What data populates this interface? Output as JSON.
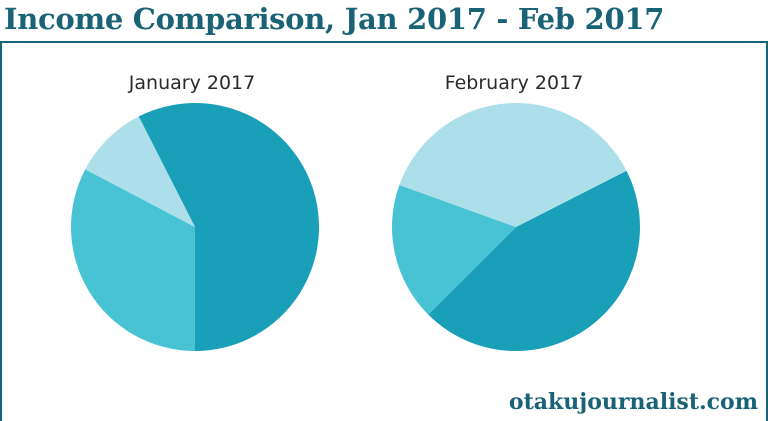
{
  "header": {
    "title": "Income Comparison, Jan 2017 - Feb 2017"
  },
  "footer": {
    "site": "otakujournalist.com"
  },
  "colors": {
    "brand": "#1a6276",
    "slice_dark": "#1a9fb8",
    "slice_mid": "#47c3d4",
    "slice_light": "#addfeb"
  },
  "chart_data": [
    {
      "type": "pie",
      "title": "January 2017",
      "series": [
        {
          "value": 0.575,
          "color": "#1a9fb8"
        },
        {
          "value": 0.327,
          "color": "#47c3d4"
        },
        {
          "value": 0.098,
          "color": "#addfeb"
        }
      ]
    },
    {
      "type": "pie",
      "title": "February 2017",
      "series": [
        {
          "value": 0.45,
          "color": "#1a9fb8"
        },
        {
          "value": 0.18,
          "color": "#47c3d4"
        },
        {
          "value": 0.37,
          "color": "#addfeb"
        }
      ]
    }
  ]
}
